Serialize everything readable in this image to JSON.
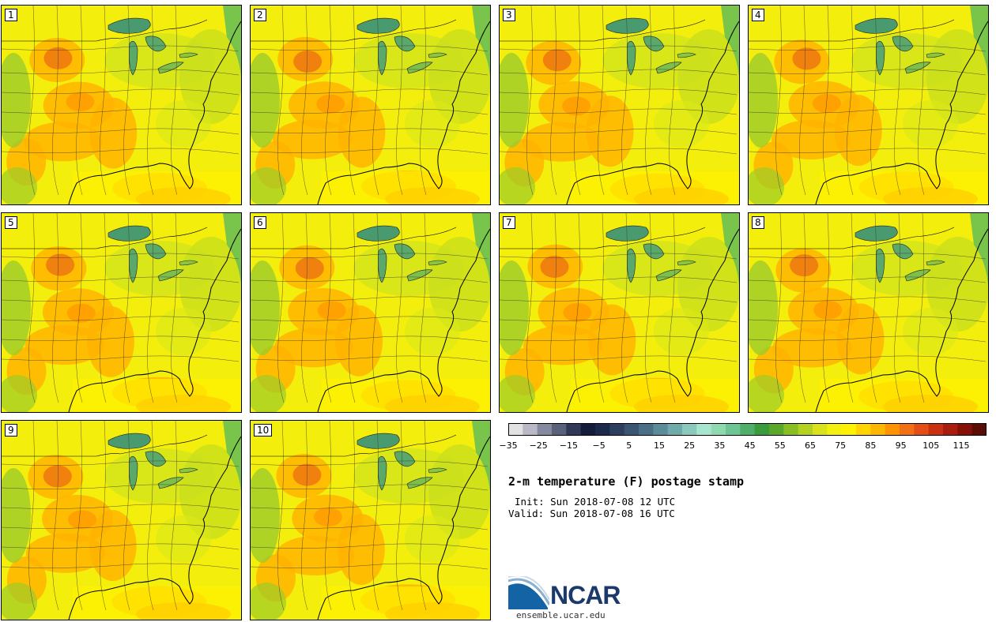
{
  "panels": [
    {
      "label": "1"
    },
    {
      "label": "2"
    },
    {
      "label": "3"
    },
    {
      "label": "4"
    },
    {
      "label": "5"
    },
    {
      "label": "6"
    },
    {
      "label": "7"
    },
    {
      "label": "8"
    },
    {
      "label": "9"
    },
    {
      "label": "10"
    }
  ],
  "legend": {
    "ticks": [
      "−35",
      "−25",
      "−15",
      "−5",
      "5",
      "15",
      "25",
      "35",
      "45",
      "55",
      "65",
      "75",
      "85",
      "95",
      "105",
      "115"
    ],
    "colors": [
      "#e2e2e2",
      "#b8b8c8",
      "#858aa0",
      "#5a627a",
      "#2f3a55",
      "#131d38",
      "#1a2a48",
      "#2c3f5e",
      "#3a5570",
      "#4a6f85",
      "#5d8c99",
      "#70aaaa",
      "#8dc8bf",
      "#a8e5cf",
      "#8fd9b0",
      "#6cc592",
      "#4eaf6a",
      "#3a9a3e",
      "#5aa829",
      "#8abd23",
      "#b5d120",
      "#d8e31b",
      "#f3f00d",
      "#fff200",
      "#ffd400",
      "#ffb600",
      "#ff9300",
      "#f37012",
      "#e24e14",
      "#c9300f",
      "#a81d0c",
      "#861006",
      "#5a0c05"
    ]
  },
  "info": {
    "title": "2-m temperature (F) postage stamp",
    "init": "Init: Sun 2018-07-08 12 UTC",
    "valid": "Valid: Sun 2018-07-08 16 UTC"
  },
  "logo": {
    "name": "NCAR",
    "url": "ensemble.ucar.edu"
  }
}
